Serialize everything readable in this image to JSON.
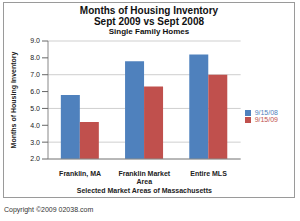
{
  "chart_data": {
    "type": "bar",
    "title": [
      "Months of Housing Inventory",
      "Sept 2009 vs Sept 2008"
    ],
    "subtitle": "Single Family Homes",
    "x_label": "Selected Market Areas of Massachusetts",
    "y_label": "Months of Housing Inventory",
    "categories": [
      "Franklin, MA",
      "Franklin Market Area",
      "Entire MLS"
    ],
    "series": [
      {
        "name": "9/15/08",
        "color": "#4f81bd",
        "values": [
          5.8,
          7.8,
          8.2
        ]
      },
      {
        "name": "9/15/09",
        "color": "#c0504d",
        "values": [
          4.2,
          6.3,
          7.0
        ]
      }
    ],
    "ylim": [
      2,
      9
    ],
    "yticks": [
      {
        "value": 2,
        "label": "2.0"
      },
      {
        "value": 3,
        "label": "3.0"
      },
      {
        "value": 4,
        "label": "4.0"
      },
      {
        "value": 5,
        "label": "5.0"
      },
      {
        "value": 6,
        "label": "6.0"
      },
      {
        "value": 7,
        "label": "7.0"
      },
      {
        "value": 8,
        "label": "8.0"
      },
      {
        "value": 9,
        "label": "9.0"
      }
    ],
    "grid": true,
    "legend": "right",
    "annotations": [
      "Copyright ©2009 02038.com"
    ]
  }
}
